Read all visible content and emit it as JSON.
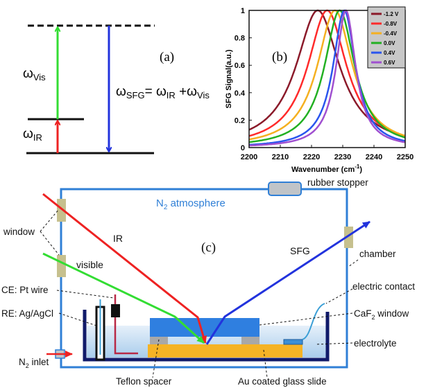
{
  "panel_a": {
    "label": "(a)",
    "omega_vis": {
      "base": "ω",
      "sub": "Vis"
    },
    "omega_ir": {
      "base": "ω",
      "sub": "IR"
    },
    "formula": {
      "w1": "ω",
      "s1": "SFG",
      "eq": "= ω",
      "s2": "IR",
      "plus": " +ω",
      "s3": "Vis"
    },
    "colors": {
      "visible": "#33dd33",
      "ir": "#ee2222",
      "sfg": "#2233dd"
    }
  },
  "chart_data": {
    "type": "line",
    "panel_label": "(b)",
    "xlabel": "Wavenumber (cm",
    "xlabel_sup": "-1",
    "xlabel_end": ")",
    "ylabel": "SFG Signal(a.u.)",
    "xlim": [
      2200,
      2250
    ],
    "ylim": [
      0,
      1
    ],
    "xticks": [
      "2200",
      "2210",
      "2220",
      "2230",
      "2240",
      "2250"
    ],
    "yticks": [
      "0",
      "0.2",
      "0.4",
      "0.6",
      "0.8",
      "1"
    ],
    "legend_placement": "top-right",
    "grid": false,
    "series": [
      {
        "name": "-1.2 V",
        "color": "#8b1a2a",
        "peak_wavenumber": 2222,
        "hwhm": 8.5,
        "peak": 1
      },
      {
        "name": "-0.8V",
        "color": "#ff2a2a",
        "peak_wavenumber": 2225,
        "hwhm": 7.6,
        "peak": 1
      },
      {
        "name": "-0.4V",
        "color": "#f5b020",
        "peak_wavenumber": 2227.5,
        "hwhm": 6.9,
        "peak": 1
      },
      {
        "name": "0.0V",
        "color": "#22b022",
        "peak_wavenumber": 2229,
        "hwhm": 5.9,
        "peak": 1
      },
      {
        "name": "0.4V",
        "color": "#2a55ee",
        "peak_wavenumber": 2230.5,
        "hwhm": 4.4,
        "peak": 1
      },
      {
        "name": "0.6V",
        "color": "#a050d0",
        "peak_wavenumber": 2231,
        "hwhm": 3.8,
        "peak": 1
      }
    ]
  },
  "panel_c": {
    "label": "(c)",
    "atmosphere": {
      "base": "N",
      "sub": "2",
      "rest": " atmosphere"
    },
    "rubber_stopper": "rubber stopper",
    "window": "window",
    "ir": "IR",
    "visible": "visible",
    "sfg": "SFG",
    "chamber": "chamber",
    "ce": "CE: Pt  wire",
    "re": "RE: Ag/AgCl",
    "electric_contact": "electric contact",
    "caf2": {
      "base": "CaF",
      "sub": "2",
      "rest": " window"
    },
    "electrolyte": "electrolyte",
    "n2_inlet": {
      "base": "N",
      "sub": "2",
      "rest": " inlet"
    },
    "teflon": "Teflon spacer",
    "au_slide": "Au coated glass slide"
  }
}
